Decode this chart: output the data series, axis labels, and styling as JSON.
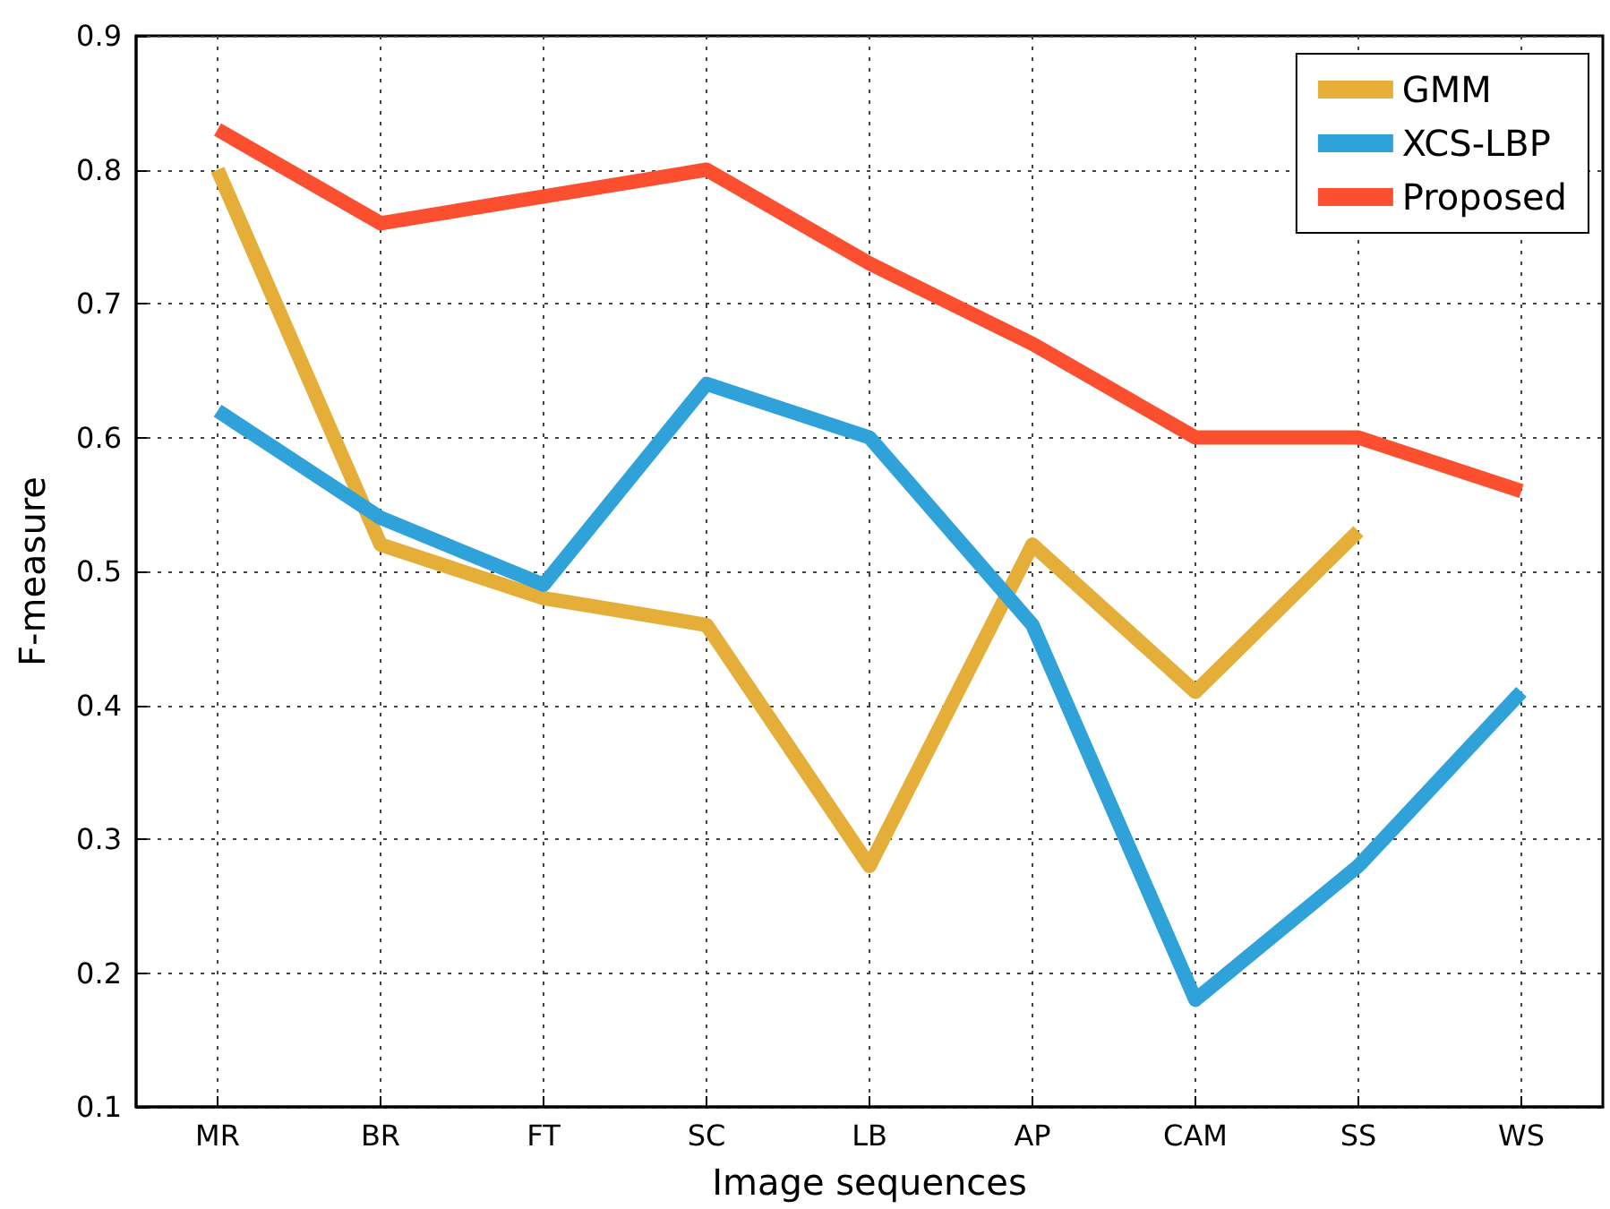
{
  "chart_data": {
    "type": "line",
    "xlabel": "Image sequences",
    "ylabel": "F-measure",
    "categories": [
      "MR",
      "BR",
      "FT",
      "SC",
      "LB",
      "AP",
      "CAM",
      "SS",
      "WS"
    ],
    "series": [
      {
        "name": "GMM",
        "color": "#e5ae38",
        "values": [
          0.8,
          0.52,
          0.48,
          0.46,
          0.28,
          0.52,
          0.41,
          0.53,
          null
        ]
      },
      {
        "name": "XCS-LBP",
        "color": "#30a2da",
        "values": [
          0.62,
          0.54,
          0.49,
          0.64,
          0.6,
          0.46,
          0.18,
          0.28,
          0.41
        ]
      },
      {
        "name": "Proposed",
        "color": "#fc4f30",
        "values": [
          0.83,
          0.76,
          0.78,
          0.8,
          0.73,
          0.67,
          0.6,
          0.6,
          0.56
        ]
      }
    ],
    "ylim": [
      0.1,
      0.9
    ],
    "yticks": [
      0.1,
      0.2,
      0.3,
      0.4,
      0.5,
      0.6,
      0.7,
      0.8,
      0.9
    ],
    "grid": true,
    "legend": "top right",
    "marker": "none",
    "line_style": "solid"
  }
}
